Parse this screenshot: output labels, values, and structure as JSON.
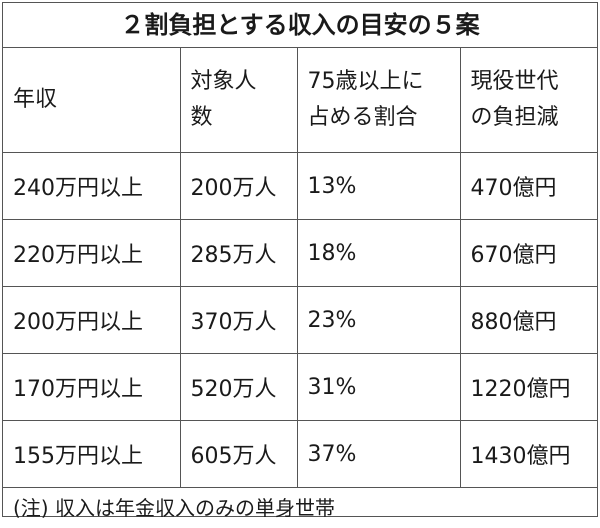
{
  "title": "２割負担とする収入の目安の５案",
  "headers": [
    [
      "年収"
    ],
    [
      "対象人",
      "数"
    ],
    [
      "75歳以上に",
      "占める割合"
    ],
    [
      "現役世代",
      "の負担減"
    ]
  ],
  "rows": [
    [
      "240万円以上",
      "200万人",
      "13%",
      "470億円"
    ],
    [
      "220万円以上",
      "285万人",
      "18%",
      "670億円"
    ],
    [
      "200万円以上",
      "370万人",
      "23%",
      "880億円"
    ],
    [
      "170万円以上",
      "520万人",
      "31%",
      "1220億円"
    ],
    [
      "155万円以上",
      "605万人",
      "37%",
      "1430億円"
    ]
  ],
  "note": "(注) 収入は年金収入のみの単身世帯"
}
